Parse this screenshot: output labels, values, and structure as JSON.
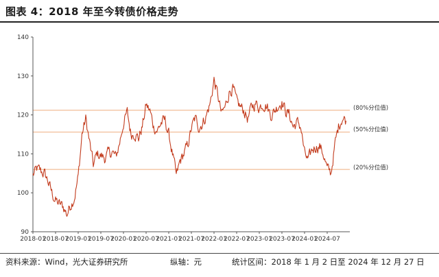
{
  "header": {
    "title": "图表 4：2018 年至今转债价格走势"
  },
  "footer": {
    "source": "资料来源：Wind，光大证券研究所",
    "unit": "纵轴：元",
    "range": "统计区间：2018 年 1 月 2 日至 2024 年 12 月 27 日"
  },
  "colors": {
    "line": "#c23a1c",
    "reference": "#f2bd97",
    "axis": "#555555"
  },
  "chart_data": {
    "type": "line",
    "title": "",
    "xlabel": "",
    "ylabel": "",
    "ylim": [
      90,
      140
    ],
    "xlim": [
      "2018-01",
      "2025-01"
    ],
    "y_ticks": [
      90,
      100,
      110,
      120,
      130,
      140
    ],
    "x_ticks": [
      "2018-01",
      "2018-07",
      "2019-01",
      "2019-07",
      "2020-01",
      "2020-07",
      "2021-01",
      "2021-07",
      "2022-01",
      "2022-07",
      "2023-01",
      "2023-07",
      "2024-01",
      "2024-07"
    ],
    "grid": false,
    "reference_lines": [
      {
        "label": "(80%分位值)",
        "value": 121.2
      },
      {
        "label": "(50%分位值)",
        "value": 115.6
      },
      {
        "label": "(20%分位值)",
        "value": 106.0
      }
    ],
    "series": [
      {
        "name": "",
        "x": [
          "2018-01",
          "2018-02",
          "2018-03",
          "2018-04",
          "2018-05",
          "2018-06",
          "2018-07",
          "2018-08",
          "2018-09",
          "2018-10",
          "2018-11",
          "2018-12",
          "2019-01",
          "2019-02",
          "2019-03",
          "2019-04",
          "2019-05",
          "2019-06",
          "2019-07",
          "2019-08",
          "2019-09",
          "2019-10",
          "2019-11",
          "2019-12",
          "2020-01",
          "2020-02",
          "2020-03",
          "2020-04",
          "2020-05",
          "2020-06",
          "2020-07",
          "2020-08",
          "2020-09",
          "2020-10",
          "2020-11",
          "2020-12",
          "2021-01",
          "2021-02",
          "2021-03",
          "2021-04",
          "2021-05",
          "2021-06",
          "2021-07",
          "2021-08",
          "2021-09",
          "2021-10",
          "2021-11",
          "2021-12",
          "2022-01",
          "2022-02",
          "2022-03",
          "2022-04",
          "2022-05",
          "2022-06",
          "2022-07",
          "2022-08",
          "2022-09",
          "2022-10",
          "2022-11",
          "2022-12",
          "2023-01",
          "2023-02",
          "2023-03",
          "2023-04",
          "2023-05",
          "2023-06",
          "2023-07",
          "2023-08",
          "2023-09",
          "2023-10",
          "2023-11",
          "2023-12",
          "2024-01",
          "2024-02",
          "2024-03",
          "2024-04",
          "2024-05",
          "2024-06",
          "2024-07",
          "2024-08",
          "2024-09",
          "2024-10",
          "2024-11",
          "2024-12"
        ],
        "values": [
          104.5,
          106.0,
          105.5,
          105.0,
          103.0,
          100.0,
          98.0,
          97.0,
          96.5,
          94.5,
          97.0,
          99.0,
          104.0,
          115.0,
          119.0,
          113.0,
          107.0,
          110.0,
          109.5,
          109.0,
          110.0,
          110.5,
          109.0,
          113.0,
          118.0,
          120.5,
          115.0,
          115.5,
          114.0,
          117.0,
          122.5,
          121.0,
          117.0,
          116.0,
          118.0,
          118.5,
          115.0,
          110.0,
          104.0,
          108.0,
          110.0,
          112.0,
          116.5,
          119.0,
          117.0,
          118.0,
          120.0,
          123.0,
          129.0,
          125.0,
          120.0,
          122.0,
          126.0,
          127.0,
          123.0,
          122.0,
          121.0,
          119.0,
          122.0,
          123.0,
          122.0,
          123.0,
          122.5,
          120.0,
          121.0,
          122.5,
          123.5,
          121.0,
          120.0,
          117.0,
          118.0,
          117.0,
          110.0,
          108.0,
          111.0,
          112.0,
          112.0,
          110.0,
          106.0,
          105.0,
          112.0,
          117.0,
          119.5,
          118.5
        ]
      }
    ]
  }
}
